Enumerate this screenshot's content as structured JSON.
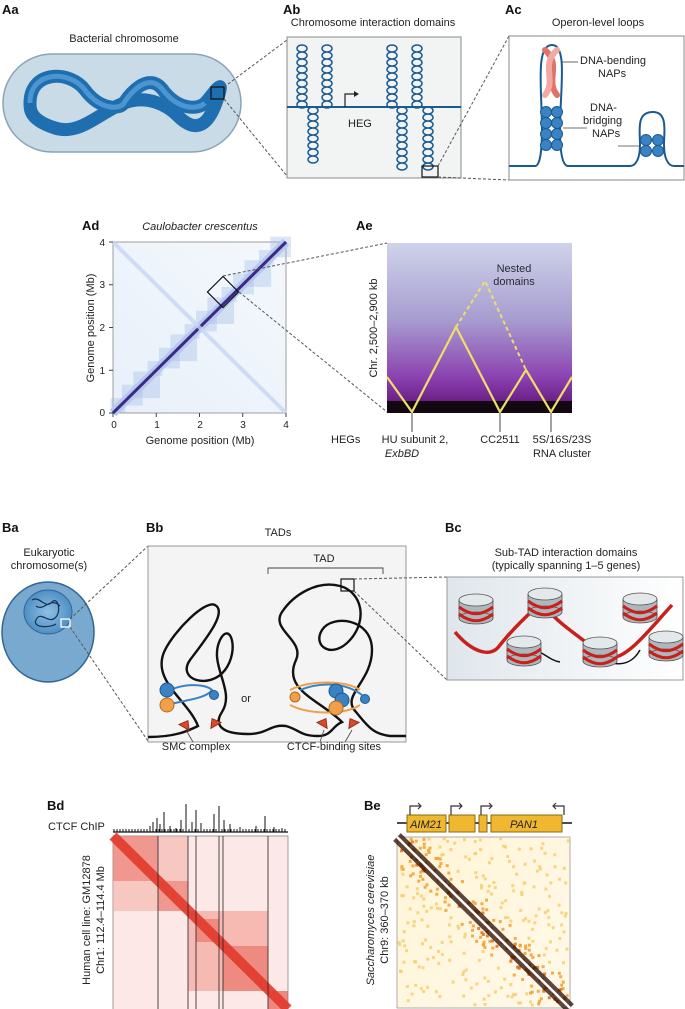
{
  "panels": {
    "Aa": {
      "label": "Aa",
      "title": "Bacterial chromosome"
    },
    "Ab": {
      "label": "Ab",
      "title": "Chromosome interaction domains",
      "heg": "HEG"
    },
    "Ac": {
      "label": "Ac",
      "title": "Operon-level loops",
      "bending": [
        "DNA-bending",
        "NAPs"
      ],
      "bridging": [
        "DNA-",
        "bridging",
        "NAPs"
      ]
    },
    "Ad": {
      "label": "Ad",
      "title": "Caulobacter crescentus",
      "xlabel": "Genome position (Mb)",
      "ylabel": "Genome position (Mb)",
      "xticks": [
        "0",
        "1",
        "2",
        "3",
        "4"
      ],
      "yticks": [
        "0",
        "1",
        "2",
        "3",
        "4"
      ]
    },
    "Ae": {
      "label": "Ae",
      "ylabel": "Chr. 2,500–2,900 kb",
      "nested": [
        "Nested",
        "domains"
      ],
      "hegs_label": "HEGs",
      "genes": {
        "hu": [
          "HU subunit 2,",
          "ExbBD"
        ],
        "cc": "CC2511",
        "rna": [
          "5S/16S/23S",
          "RNA cluster"
        ]
      }
    },
    "Ba": {
      "label": "Ba",
      "title": [
        "Eukaryotic",
        "chromosome(s)"
      ]
    },
    "Bb": {
      "label": "Bb",
      "title": "TADs",
      "tad": "TAD",
      "or": "or",
      "smc": "SMC complex",
      "ctcf": "CTCF-binding sites"
    },
    "Bc": {
      "label": "Bc",
      "title": [
        "Sub-TAD interaction domains",
        "(typically spanning 1–5 genes)"
      ]
    },
    "Bd": {
      "label": "Bd",
      "track": "CTCF ChIP",
      "ylabel": [
        "Human cell line: GM12878",
        "Chr1: 112.4–114.4 Mb"
      ]
    },
    "Be": {
      "label": "Be",
      "genes": [
        "AIM21",
        "PAN1"
      ],
      "ylabel": [
        "Saccharomyces cerevisiae",
        "Chr9: 360–370 kb"
      ]
    }
  },
  "colors": {
    "bacterial_dna": "#1f6fb0",
    "cell": "#c9dbe6",
    "loop_stroke": "#1a5a92",
    "tad_line": "#f0dd6a",
    "hic_red": "#e23a2c",
    "nap_red": "#e0726a",
    "smc_blue": "#3b82c4",
    "smc_orange": "#f0a04a",
    "gene_yellow": "#f0b830"
  }
}
